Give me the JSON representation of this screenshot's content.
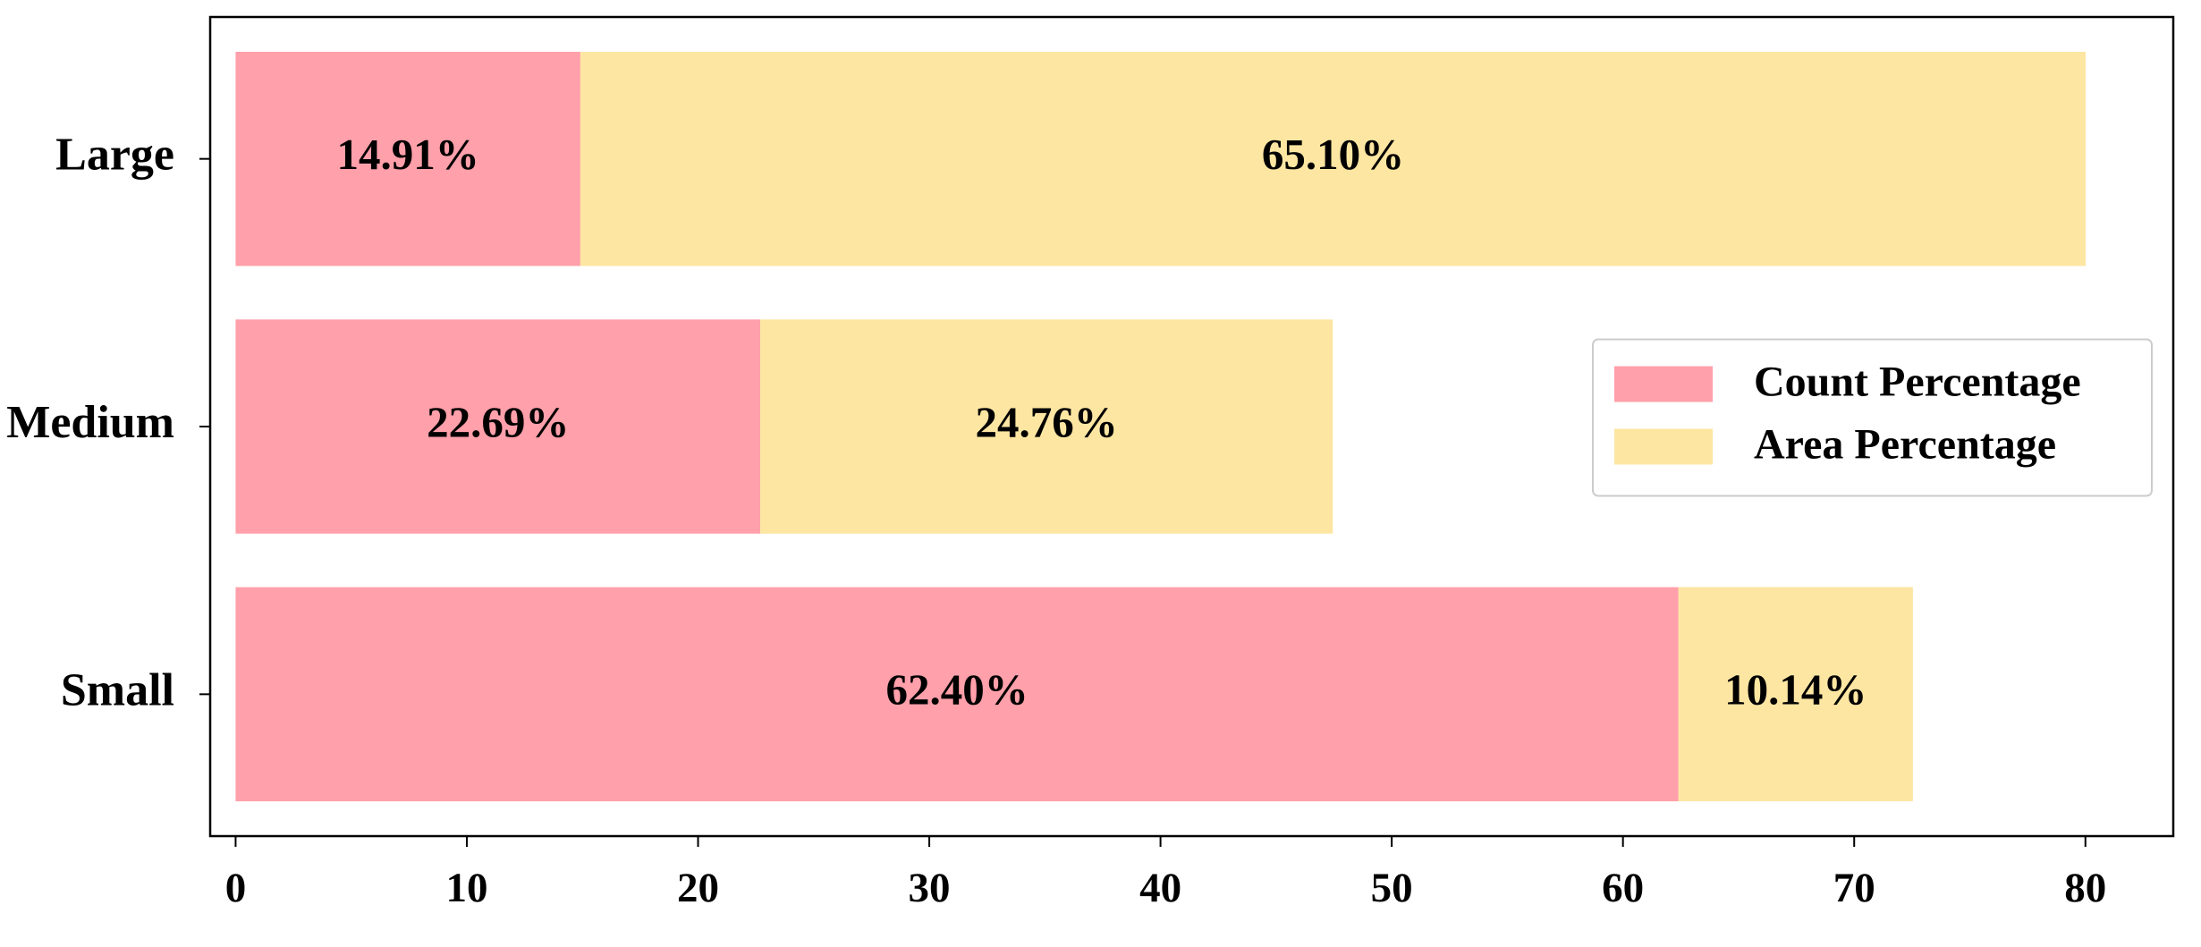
{
  "chart_data": {
    "type": "barh-stacked",
    "categories": [
      "Small",
      "Medium",
      "Large"
    ],
    "series": [
      {
        "name": "Count Percentage",
        "color": "#ffa0aa",
        "values": [
          62.4,
          22.69,
          14.91
        ],
        "value_labels": [
          "62.40%",
          "22.69%",
          "14.91%"
        ]
      },
      {
        "name": "Area Percentage",
        "color": "#fde6a2",
        "values": [
          10.14,
          24.76,
          65.1
        ],
        "value_labels": [
          "10.14%",
          "24.76%",
          "65.10%"
        ]
      }
    ],
    "xlim": [
      -1.1,
      83.8
    ],
    "xticks": [
      0,
      10,
      20,
      30,
      40,
      50,
      60,
      70,
      80
    ],
    "legend": "center right",
    "grid": false
  }
}
